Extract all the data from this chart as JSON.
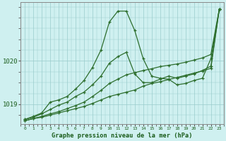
{
  "title": "Graphe pression niveau de la mer (hPa)",
  "background_color": "#cff0f0",
  "grid_color": "#99cccc",
  "line_color": "#2d6e2d",
  "hours": [
    0,
    1,
    2,
    3,
    4,
    5,
    6,
    7,
    8,
    9,
    10,
    11,
    12,
    13,
    14,
    15,
    16,
    17,
    18,
    19,
    20,
    21,
    22,
    23
  ],
  "series1": [
    1018.65,
    1018.72,
    1018.8,
    1019.05,
    1019.1,
    1019.18,
    1019.35,
    1019.55,
    1019.85,
    1020.25,
    1020.9,
    1021.15,
    1021.15,
    1020.7,
    1020.05,
    1019.65,
    1019.6,
    1019.58,
    1019.45,
    1019.48,
    1019.55,
    1019.6,
    1020.05,
    1021.2
  ],
  "series2": [
    1018.65,
    1018.7,
    1018.78,
    1018.88,
    1018.98,
    1019.05,
    1019.18,
    1019.28,
    1019.45,
    1019.65,
    1019.95,
    1020.1,
    1020.2,
    1019.7,
    1019.5,
    1019.5,
    1019.58,
    1019.65,
    1019.6,
    1019.65,
    1019.7,
    1019.78,
    1019.88,
    1021.2
  ],
  "series3": [
    1018.62,
    1018.67,
    1018.72,
    1018.78,
    1018.83,
    1018.9,
    1018.97,
    1019.05,
    1019.18,
    1019.32,
    1019.48,
    1019.58,
    1019.68,
    1019.73,
    1019.78,
    1019.82,
    1019.87,
    1019.9,
    1019.93,
    1019.97,
    1020.02,
    1020.07,
    1020.15,
    1021.2
  ],
  "series4": [
    1018.62,
    1018.67,
    1018.7,
    1018.75,
    1018.8,
    1018.85,
    1018.9,
    1018.95,
    1019.02,
    1019.1,
    1019.18,
    1019.23,
    1019.28,
    1019.33,
    1019.42,
    1019.48,
    1019.52,
    1019.57,
    1019.62,
    1019.67,
    1019.72,
    1019.77,
    1019.83,
    1021.2
  ],
  "ylim": [
    1018.55,
    1021.35
  ],
  "yticks": [
    1019,
    1020
  ],
  "ytick_labels": [
    "1019",
    "1020"
  ],
  "xlim": [
    -0.5,
    23.5
  ]
}
